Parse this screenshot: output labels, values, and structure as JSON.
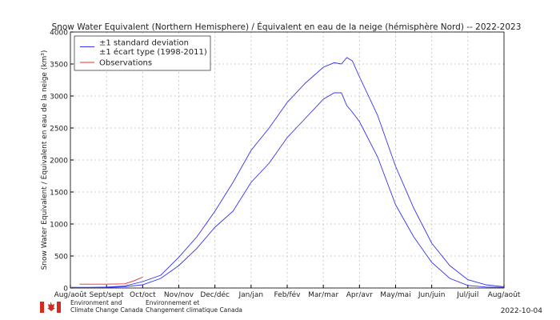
{
  "chart_data": {
    "type": "line",
    "title": "Snow Water Equivalent (Northern Hemisphere) / Équivalent en eau de la neige (hémisphère Nord) -- 2022-2023",
    "ylabel": "Snow Water Equivalent / Équivalent en eau de la neige (km³)",
    "xlim": [
      0,
      12
    ],
    "xticks": [
      {
        "value": 0,
        "label": "Aug/août"
      },
      {
        "value": 1,
        "label": "Sept/sept"
      },
      {
        "value": 2,
        "label": "Oct/oct"
      },
      {
        "value": 3,
        "label": "Nov/nov"
      },
      {
        "value": 4,
        "label": "Dec/déc"
      },
      {
        "value": 5,
        "label": "Jan/jan"
      },
      {
        "value": 6,
        "label": "Feb/fév"
      },
      {
        "value": 7,
        "label": "Mar/mar"
      },
      {
        "value": 8,
        "label": "Apr/avr"
      },
      {
        "value": 9,
        "label": "May/mai"
      },
      {
        "value": 10,
        "label": "Jun/juin"
      },
      {
        "value": 11,
        "label": "Jul/juil"
      },
      {
        "value": 12,
        "label": "Aug/août"
      }
    ],
    "ylim": [
      0,
      4000
    ],
    "yticks": [
      0,
      500,
      1000,
      1500,
      2000,
      2500,
      3000,
      3500,
      4000
    ],
    "grid": true,
    "series": [
      {
        "name": [
          "±1 standard deviation",
          "±1 écart type (1998-2011)"
        ],
        "color": "#3333ee",
        "x": [
          0,
          0.5,
          1,
          1.5,
          2,
          2.5,
          3,
          3.5,
          4,
          4.5,
          5,
          5.5,
          6,
          6.5,
          7,
          7.3,
          7.5,
          7.65,
          7.8,
          8,
          8.5,
          9,
          9.5,
          10,
          10.5,
          11,
          11.5,
          12
        ],
        "values": [
          10,
          10,
          15,
          30,
          100,
          200,
          480,
          800,
          1200,
          1650,
          2150,
          2500,
          2900,
          3200,
          3450,
          3520,
          3500,
          3600,
          3550,
          3300,
          2700,
          1900,
          1250,
          700,
          350,
          130,
          50,
          20
        ],
        "lower": [
          5,
          6,
          8,
          20,
          50,
          150,
          350,
          620,
          950,
          1200,
          1650,
          1950,
          2350,
          2650,
          2950,
          3050,
          3050,
          2850,
          2750,
          2600,
          2050,
          1300,
          800,
          400,
          150,
          40,
          15,
          10
        ]
      },
      {
        "name": [
          "Observations"
        ],
        "color": "#e03030",
        "x": [
          0.25,
          0.5,
          1,
          1.5,
          1.75,
          2
        ],
        "values": [
          60,
          60,
          60,
          65,
          110,
          170
        ]
      }
    ],
    "footer": {
      "org_en": [
        "Environment and",
        "Climate Change Canada"
      ],
      "org_fr": [
        "Environnement et",
        "Changement climatique Canada"
      ],
      "date": "2022-10-04"
    }
  }
}
